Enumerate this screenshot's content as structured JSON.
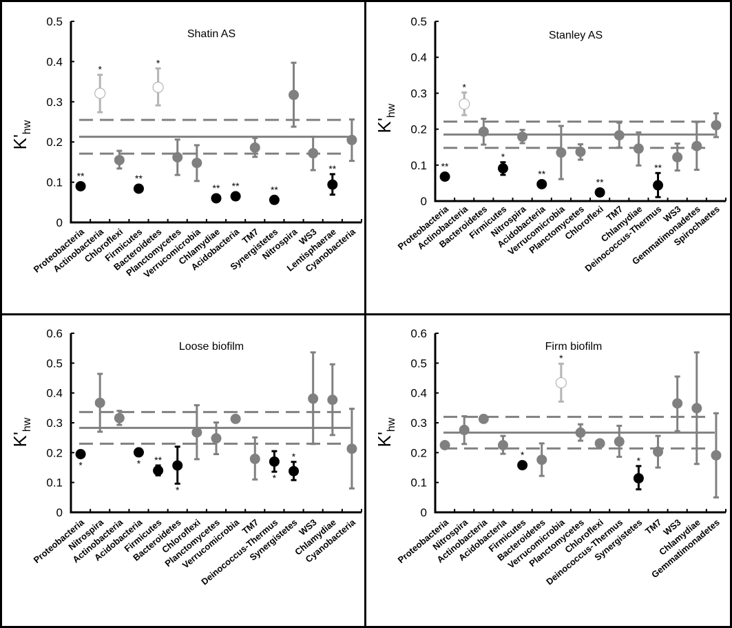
{
  "chart_data": [
    {
      "type": "scatter",
      "title": "Shatin AS",
      "ylabel": "K'hw",
      "ylabel_main": "K'",
      "ylabel_sub": "hw",
      "ylim": [
        0,
        0.5
      ],
      "yticks": [
        0,
        0.1,
        0.2,
        0.3,
        0.4,
        0.5
      ],
      "ytick_labels": [
        "0",
        "0.1",
        "0.2",
        "0.3",
        "0.4",
        "0.5"
      ],
      "grid": false,
      "reference_lines": {
        "mean": 0.213,
        "upper": 0.255,
        "lower": 0.171
      },
      "categories": [
        "Proteobacteria",
        "Actinobacteria",
        "Chloroflexi",
        "Firmicutes",
        "Bacteroidetes",
        "Planctomycetes",
        "Verrucomicrobia",
        "Chlamydiae",
        "Acidobacteria",
        "TM7",
        "Synergistetes",
        "Nitrospira",
        "WS3",
        "Lentisphaerae",
        "Cyanobacteria"
      ],
      "values": [
        0.09,
        0.321,
        0.155,
        0.084,
        0.336,
        0.162,
        0.148,
        0.06,
        0.065,
        0.186,
        0.056,
        0.317,
        0.172,
        0.094,
        0.205
      ],
      "err_low": [
        null,
        0.274,
        0.134,
        null,
        0.291,
        0.118,
        0.103,
        null,
        null,
        0.163,
        null,
        0.238,
        0.13,
        0.069,
        0.153
      ],
      "err_high": [
        null,
        0.367,
        0.178,
        null,
        0.383,
        0.206,
        0.192,
        null,
        null,
        0.21,
        null,
        0.397,
        0.213,
        0.12,
        0.256
      ],
      "marker": [
        "black",
        "open",
        "gray",
        "black",
        "open",
        "gray",
        "gray",
        "black",
        "black",
        "gray",
        "black",
        "gray",
        "gray",
        "black",
        "gray"
      ],
      "significance": [
        "**",
        "*",
        "",
        "**",
        "*",
        "",
        "",
        "**",
        "**",
        "",
        "**",
        "",
        "",
        "**",
        ""
      ],
      "sig_position": [
        "above",
        "above",
        "",
        "above",
        "above",
        "",
        "",
        "above",
        "above",
        "",
        "above",
        "",
        "",
        "above",
        ""
      ]
    },
    {
      "type": "scatter",
      "title": "Stanley AS",
      "ylabel": "K'hw",
      "ylabel_main": "K'",
      "ylabel_sub": "hw",
      "ylim": [
        0,
        0.5
      ],
      "yticks": [
        0,
        0.1,
        0.2,
        0.3,
        0.4,
        0.5
      ],
      "ytick_labels": [
        "0",
        "0.1",
        "0.2",
        "0.3",
        "0.4",
        "0.5"
      ],
      "grid": false,
      "reference_lines": {
        "mean": 0.185,
        "upper": 0.221,
        "lower": 0.148
      },
      "categories": [
        "Proteobacteria",
        "Actinobacteria",
        "Bacteroidetes",
        "Firmicutes",
        "Nitrospira",
        "Acidobacteria",
        "Verrucomicrobia",
        "Planctomycetes",
        "Chloroflexi",
        "TM7",
        "Chlamydiae",
        "Deinococcus-Thermus",
        "WS3",
        "Gemmatimonadetes",
        "Spirochaetes"
      ],
      "values": [
        0.068,
        0.27,
        0.193,
        0.091,
        0.179,
        0.047,
        0.135,
        0.137,
        0.024,
        0.183,
        0.146,
        0.044,
        0.122,
        0.153,
        0.211
      ],
      "err_low": [
        null,
        0.239,
        0.157,
        0.073,
        0.161,
        null,
        0.061,
        0.115,
        null,
        0.149,
        0.099,
        0.011,
        0.085,
        0.087,
        0.178
      ],
      "err_high": [
        null,
        0.302,
        0.229,
        0.108,
        0.198,
        null,
        0.209,
        0.158,
        null,
        0.218,
        0.191,
        0.078,
        0.16,
        0.22,
        0.244
      ],
      "marker": [
        "black",
        "open",
        "gray",
        "black",
        "gray",
        "black",
        "gray",
        "gray",
        "black",
        "gray",
        "gray",
        "black",
        "gray",
        "gray",
        "gray"
      ],
      "significance": [
        "**",
        "*",
        "",
        "*",
        "",
        "**",
        "",
        "",
        "**",
        "",
        "",
        "**",
        "",
        "",
        ""
      ],
      "sig_position": [
        "above",
        "above",
        "",
        "above",
        "",
        "above",
        "",
        "",
        "above",
        "",
        "",
        "above",
        "",
        "",
        ""
      ]
    },
    {
      "type": "scatter",
      "title": "Loose biofilm",
      "ylabel": "K'hw",
      "ylabel_main": "K'",
      "ylabel_sub": "hw",
      "ylim": [
        0,
        0.6
      ],
      "yticks": [
        0,
        0.1,
        0.2,
        0.3,
        0.4,
        0.5,
        0.6
      ],
      "ytick_labels": [
        "0",
        "0.1",
        "0.2",
        "0.3",
        "0.4",
        "0.5",
        "0.6"
      ],
      "grid": false,
      "reference_lines": {
        "mean": 0.283,
        "upper": 0.336,
        "lower": 0.23
      },
      "categories": [
        "Proteobacteria",
        "Nitrospira",
        "Actinobacteria",
        "Acidobacteria",
        "Firmicutes",
        "Bacteroidetes",
        "Chloroflexi",
        "Planctomycetes",
        "Verrucomicrobia",
        "TM7",
        "Deinococcus-Thermus",
        "Synergistetes",
        "WS3",
        "Chlamydiae",
        "Cyanobacteria"
      ],
      "values": [
        0.195,
        0.367,
        0.316,
        0.201,
        0.14,
        0.157,
        0.268,
        0.248,
        0.313,
        0.179,
        0.17,
        0.138,
        0.381,
        0.377,
        0.213
      ],
      "err_low": [
        null,
        0.27,
        0.293,
        null,
        0.124,
        0.096,
        0.178,
        0.195,
        null,
        0.11,
        0.136,
        0.108,
        0.229,
        0.259,
        0.08
      ],
      "err_high": [
        null,
        0.464,
        0.34,
        null,
        0.157,
        0.22,
        0.359,
        0.301,
        null,
        0.251,
        0.205,
        0.169,
        0.536,
        0.496,
        0.347
      ],
      "marker": [
        "black",
        "gray",
        "gray",
        "black",
        "black",
        "black",
        "gray",
        "gray",
        "gray",
        "gray",
        "black",
        "black",
        "gray",
        "gray",
        "gray"
      ],
      "significance": [
        "*",
        "",
        "",
        "*",
        "**",
        "*",
        "",
        "",
        "",
        "",
        "*",
        "*",
        "",
        "",
        ""
      ],
      "sig_position": [
        "below",
        "",
        "",
        "below",
        "above",
        "below",
        "",
        "",
        "",
        "",
        "below",
        "above",
        "",
        "",
        ""
      ]
    },
    {
      "type": "scatter",
      "title": "Firm biofilm",
      "ylabel": "K'hw",
      "ylabel_main": "K'",
      "ylabel_sub": "hw",
      "ylim": [
        0,
        0.6
      ],
      "yticks": [
        0,
        0.1,
        0.2,
        0.3,
        0.4,
        0.5,
        0.6
      ],
      "ytick_labels": [
        "0",
        "0.1",
        "0.2",
        "0.3",
        "0.4",
        "0.5",
        "0.6"
      ],
      "grid": false,
      "reference_lines": {
        "mean": 0.267,
        "upper": 0.32,
        "lower": 0.214
      },
      "categories": [
        "Proteobacteria",
        "Nitrospira",
        "Actinobacteria",
        "Acidobacteria",
        "Firmicutes",
        "Bacteroidetes",
        "Verrucomicrobia",
        "Planctomycetes",
        "Chloroflexi",
        "Deinococcus-Thermus",
        "Synergistetes",
        "TM7",
        "WS3",
        "Chlamydiae",
        "Gemmatimonadetes"
      ],
      "values": [
        0.225,
        0.276,
        0.313,
        0.225,
        0.158,
        0.176,
        0.434,
        0.267,
        0.231,
        0.237,
        0.114,
        0.203,
        0.365,
        0.349,
        0.191
      ],
      "err_low": [
        null,
        0.229,
        null,
        0.196,
        null,
        0.122,
        0.371,
        0.24,
        null,
        0.186,
        0.077,
        0.15,
        0.272,
        0.162,
        0.05
      ],
      "err_high": [
        null,
        0.322,
        null,
        0.256,
        null,
        0.231,
        0.498,
        0.295,
        null,
        0.29,
        0.155,
        0.256,
        0.455,
        0.536,
        0.332
      ],
      "marker": [
        "gray",
        "gray",
        "gray",
        "gray",
        "black",
        "gray",
        "open",
        "gray",
        "gray",
        "gray",
        "black",
        "gray",
        "gray",
        "gray",
        "gray"
      ],
      "significance": [
        "",
        "",
        "",
        "",
        "*",
        "",
        "*",
        "",
        "",
        "",
        "*",
        "",
        "",
        "",
        ""
      ],
      "sig_position": [
        "",
        "",
        "",
        "",
        "above",
        "",
        "above",
        "",
        "",
        "",
        "above",
        "",
        "",
        "",
        ""
      ]
    }
  ],
  "colors": {
    "black_marker": "#000000",
    "gray_marker": "#808080",
    "open_marker_stroke": "#b4b4b4",
    "reference_line": "#808080",
    "axis": "#000000"
  }
}
